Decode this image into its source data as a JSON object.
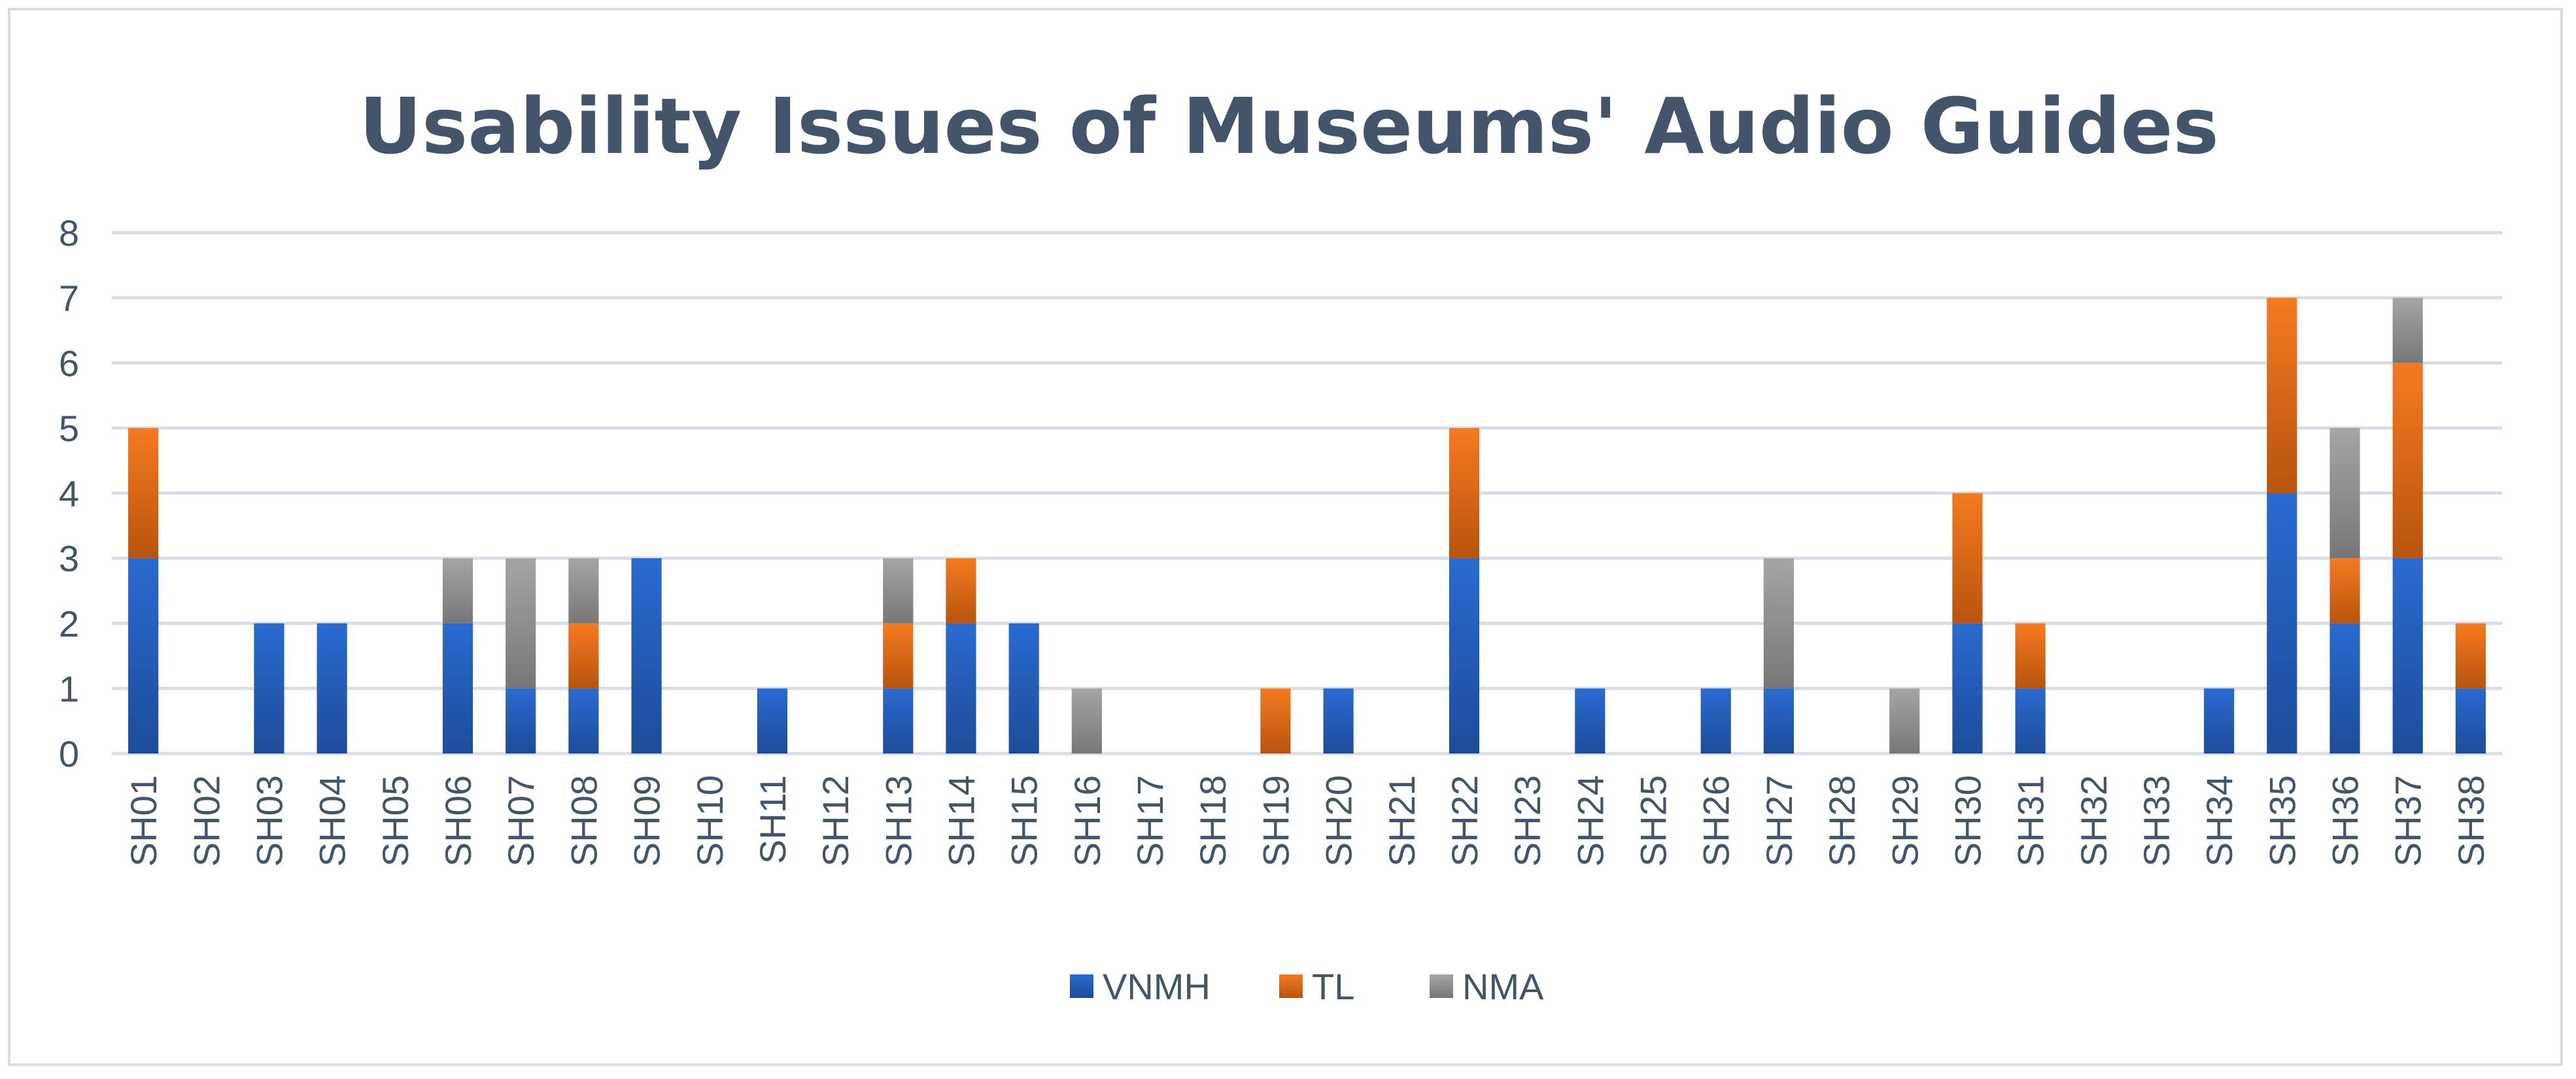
{
  "chart_data": {
    "type": "bar",
    "stacked": true,
    "title": "Usability Issues of Museums' Audio Guides",
    "xlabel": "",
    "ylabel": "",
    "ylim": [
      0,
      8
    ],
    "yticks": [
      0,
      1,
      2,
      3,
      4,
      5,
      6,
      7,
      8
    ],
    "grid": true,
    "legend_position": "bottom",
    "categories": [
      "SH01",
      "SH02",
      "SH03",
      "SH04",
      "SH05",
      "SH06",
      "SH07",
      "SH08",
      "SH09",
      "SH10",
      "SH11",
      "SH12",
      "SH13",
      "SH14",
      "SH15",
      "SH16",
      "SH17",
      "SH18",
      "SH19",
      "SH20",
      "SH21",
      "SH22",
      "SH23",
      "SH24",
      "SH25",
      "SH26",
      "SH27",
      "SH28",
      "SH29",
      "SH30",
      "SH31",
      "SH32",
      "SH33",
      "SH34",
      "SH35",
      "SH36",
      "SH37",
      "SH38"
    ],
    "series": [
      {
        "name": "VNMH",
        "color": "#2a6ad0",
        "color_dark": "#1d4c9a",
        "values": [
          3,
          0,
          2,
          2,
          0,
          2,
          1,
          1,
          3,
          0,
          1,
          0,
          1,
          2,
          2,
          0,
          0,
          0,
          0,
          1,
          0,
          3,
          0,
          1,
          0,
          1,
          1,
          0,
          0,
          2,
          1,
          0,
          0,
          1,
          4,
          2,
          3,
          1
        ]
      },
      {
        "name": "TL",
        "color": "#f57a20",
        "color_dark": "#b8540e",
        "values": [
          2,
          0,
          0,
          0,
          0,
          0,
          0,
          1,
          0,
          0,
          0,
          0,
          1,
          1,
          0,
          0,
          0,
          0,
          1,
          0,
          0,
          2,
          0,
          0,
          0,
          0,
          0,
          0,
          0,
          2,
          1,
          0,
          0,
          0,
          3,
          1,
          3,
          1
        ]
      },
      {
        "name": "NMA",
        "color": "#a5a5a5",
        "color_dark": "#777777",
        "values": [
          0,
          0,
          0,
          0,
          0,
          1,
          2,
          1,
          0,
          0,
          0,
          0,
          1,
          0,
          0,
          1,
          0,
          0,
          0,
          0,
          0,
          0,
          0,
          0,
          0,
          0,
          2,
          0,
          1,
          0,
          0,
          0,
          0,
          0,
          0,
          2,
          1,
          0
        ]
      }
    ]
  }
}
